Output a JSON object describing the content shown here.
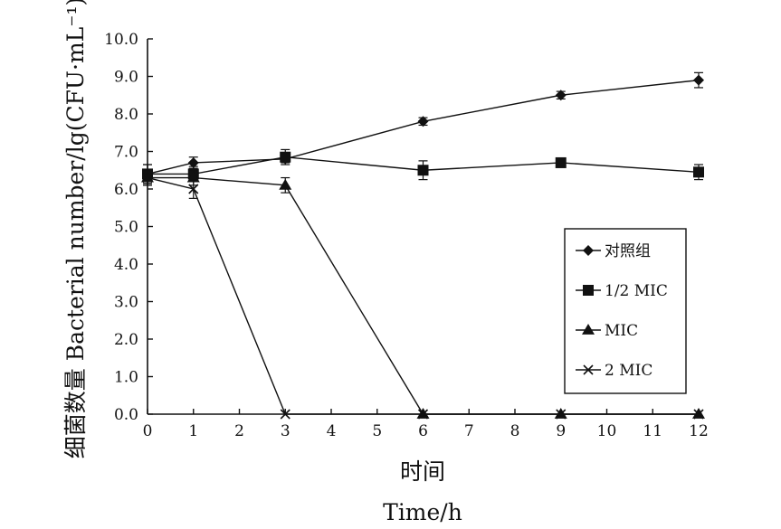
{
  "chart_data": {
    "type": "line",
    "xlabel_cn": "时间",
    "xlabel_en": "Time/h",
    "ylabel": "细菌数量 Bacterial number/lg(CFU·mL⁻¹)",
    "x": [
      0,
      1,
      3,
      6,
      9,
      12
    ],
    "xticks": [
      "0",
      "1",
      "2",
      "3",
      "4",
      "5",
      "6",
      "7",
      "8",
      "9",
      "10",
      "11",
      "12"
    ],
    "yticks": [
      "0.0",
      "1.0",
      "2.0",
      "3.0",
      "4.0",
      "5.0",
      "6.0",
      "7.0",
      "8.0",
      "9.0",
      "10.0"
    ],
    "xlim": [
      0,
      12
    ],
    "ylim": [
      0,
      10
    ],
    "grid": false,
    "legend_position": "right",
    "series": [
      {
        "name": "对照组",
        "marker": "diamond",
        "values": [
          6.4,
          6.7,
          6.8,
          7.8,
          8.5,
          8.9
        ],
        "errors": [
          0.25,
          0.15,
          0.1,
          0.1,
          0.1,
          0.2
        ]
      },
      {
        "name": "1/2 MIC",
        "marker": "square",
        "values": [
          6.4,
          6.4,
          6.85,
          6.5,
          6.7,
          6.45
        ],
        "errors": [
          0.25,
          0.2,
          0.2,
          0.25,
          0.1,
          0.2
        ]
      },
      {
        "name": "MIC",
        "marker": "triangle",
        "values": [
          6.3,
          6.3,
          6.1,
          0.0,
          0.0,
          0.0
        ],
        "errors": [
          0.2,
          0.2,
          0.2,
          0,
          0,
          0
        ]
      },
      {
        "name": "2 MIC",
        "marker": "x",
        "values": [
          6.3,
          6.0,
          0.0,
          0.0,
          0.0,
          0.0
        ],
        "errors": [
          0.2,
          0.25,
          0,
          0,
          0,
          0
        ]
      }
    ]
  }
}
